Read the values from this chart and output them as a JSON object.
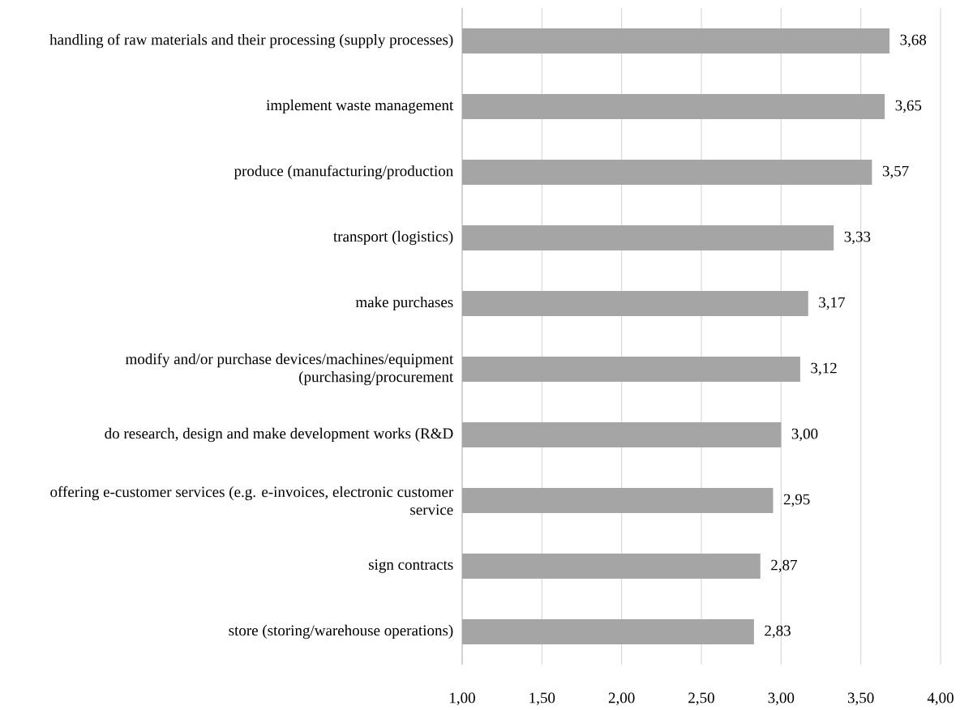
{
  "chart_data": {
    "type": "bar",
    "orientation": "horizontal",
    "categories": [
      "handling of raw materials and their processing (supply processes)",
      "implement waste management",
      "produce (manufacturing/production",
      "transport (logistics)",
      "make purchases",
      "modify and/or purchase devices/machines/equipment (purchasing/procurement",
      "do research, design and make development works (R&D",
      "offering e-customer services (e.g. e-invoices, electronic customer service",
      "sign contracts",
      "store (storing/warehouse operations)"
    ],
    "values": [
      3.68,
      3.65,
      3.57,
      3.33,
      3.17,
      3.12,
      3.0,
      2.95,
      2.87,
      2.83
    ],
    "value_labels": [
      "3,68",
      "3,65",
      "3,57",
      "3,33",
      "3,17",
      "3,12",
      "3,00",
      "2,95",
      "2,87",
      "2,83"
    ],
    "color": "#a5a5a5",
    "xlim": [
      1,
      4
    ],
    "xticks": [
      {
        "value": 1,
        "label": "1,00"
      },
      {
        "value": 1.5,
        "label": "1,50"
      },
      {
        "value": 2,
        "label": "2,00"
      },
      {
        "value": 2.5,
        "label": "2,50"
      },
      {
        "value": 3,
        "label": "3,00"
      },
      {
        "value": 3.5,
        "label": "3,50"
      },
      {
        "value": 4,
        "label": "4,00"
      }
    ],
    "grid": "x"
  }
}
